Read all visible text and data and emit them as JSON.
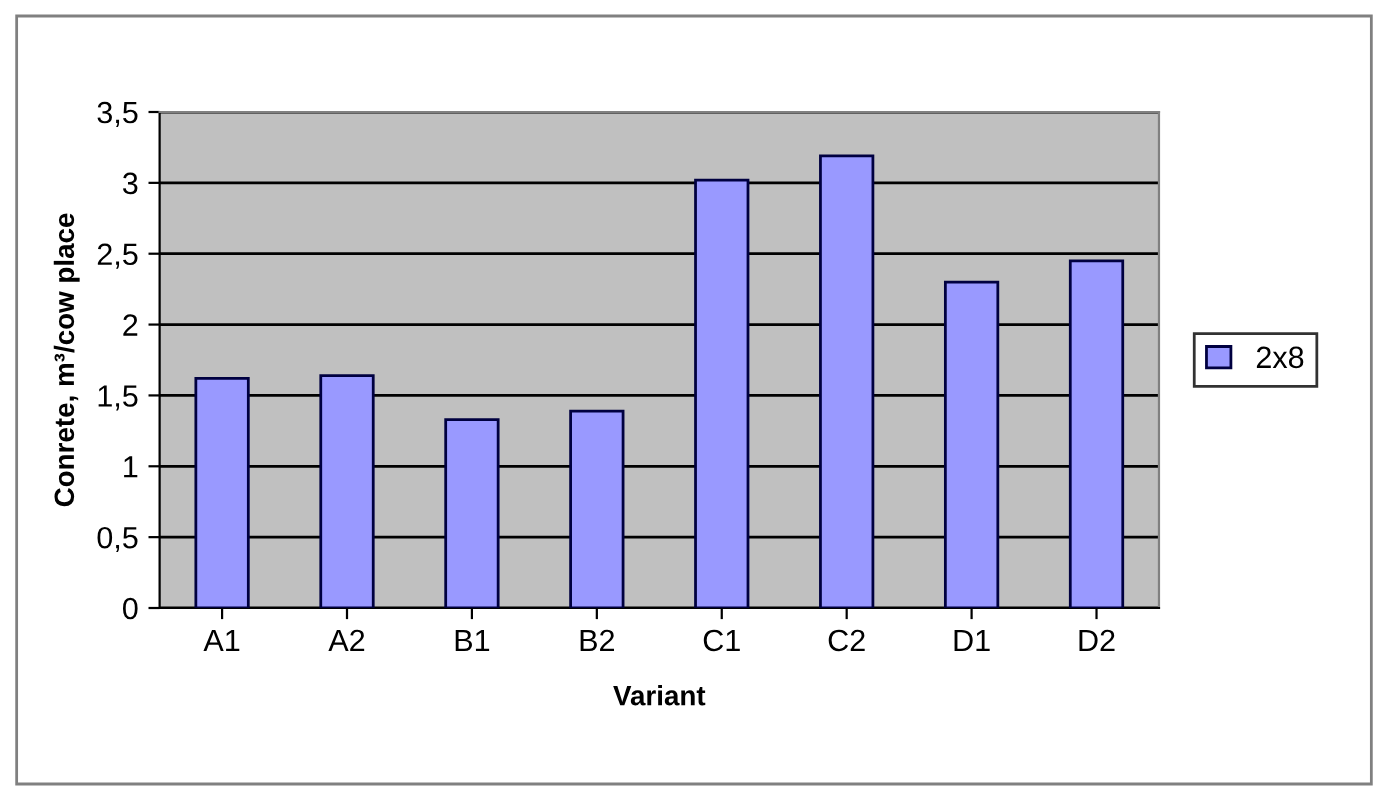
{
  "chart_data": {
    "type": "bar",
    "xlabel": "Variant",
    "ylabel": "Conrete, m³/cow place",
    "categories": [
      "A1",
      "A2",
      "B1",
      "B2",
      "C1",
      "C2",
      "D1",
      "D2"
    ],
    "series": [
      {
        "name": "2x8",
        "color": "#9999ff",
        "values": [
          1.62,
          1.64,
          1.33,
          1.39,
          3.02,
          3.19,
          2.3,
          2.45
        ]
      }
    ],
    "ylim": [
      0,
      3.5
    ],
    "yticks": [
      0,
      {
        "value": 0.5,
        "label": "0,5"
      },
      1,
      {
        "value": 1.5,
        "label": "1,5"
      },
      2,
      {
        "value": 2.5,
        "label": "2,5"
      },
      3,
      {
        "value": 3.5,
        "label": "3,5"
      }
    ],
    "grid": "y",
    "legend": "right"
  }
}
